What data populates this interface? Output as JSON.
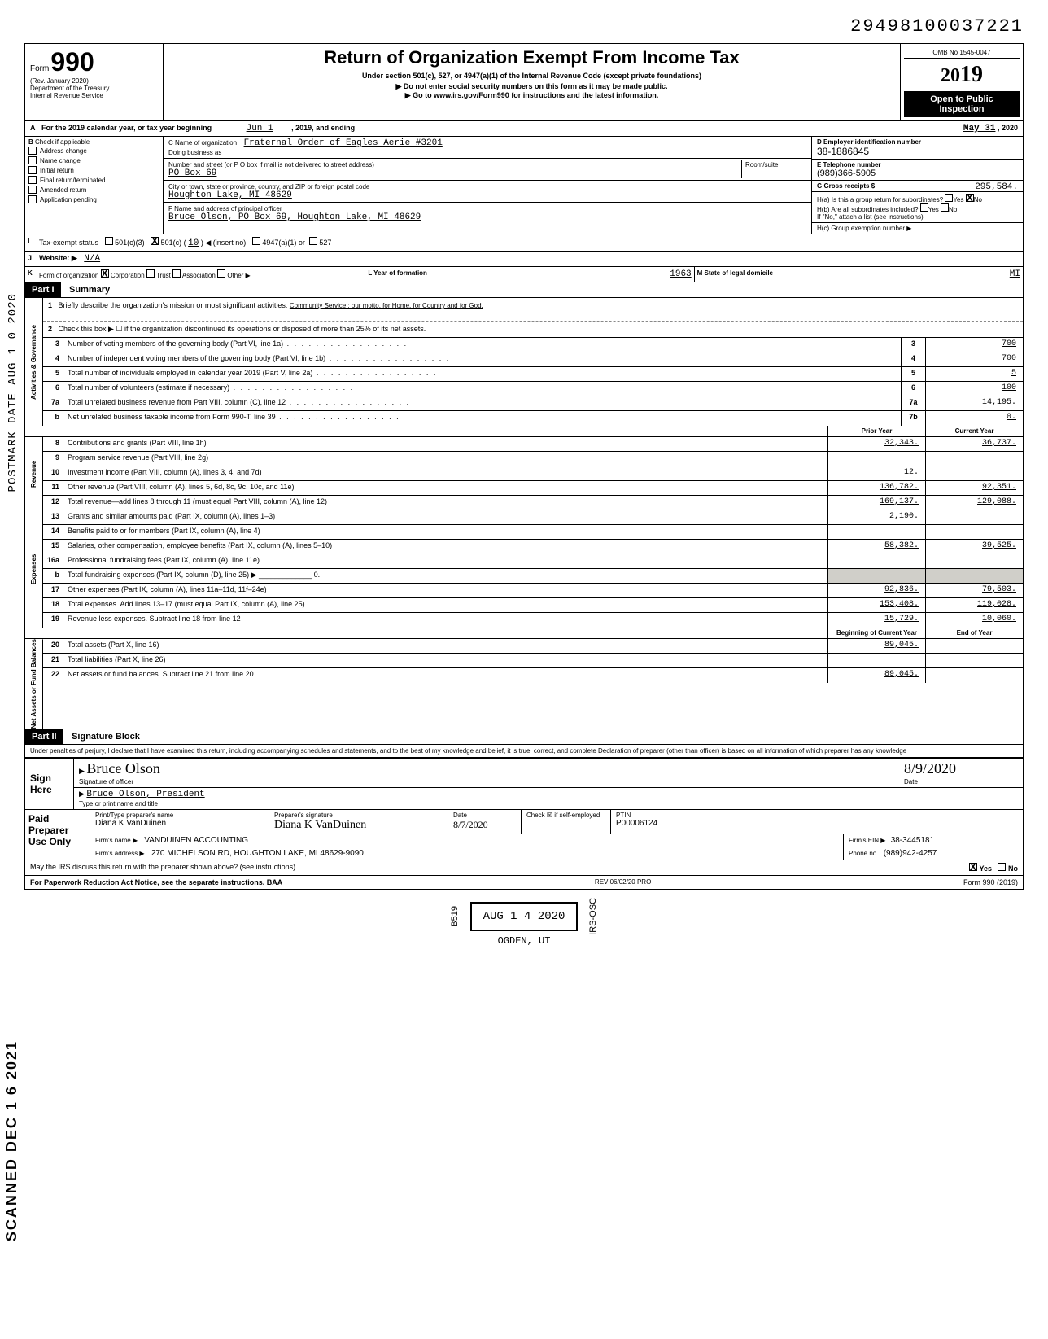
{
  "top_number": "29498100037221",
  "header": {
    "form_prefix": "Form",
    "form_number": "990",
    "rev": "(Rev. January 2020)",
    "dept": "Department of the Treasury",
    "irs": "Internal Revenue Service",
    "title": "Return of Organization Exempt From Income Tax",
    "subtitle": "Under section 501(c), 527, or 4947(a)(1) of the Internal Revenue Code (except private foundations)",
    "warn": "▶ Do not enter social security numbers on this form as it may be made public.",
    "goto": "▶ Go to www.irs.gov/Form990 for instructions and the latest information.",
    "omb": "OMB No 1545-0047",
    "year_prefix": "20",
    "year": "19",
    "open": "Open to Public",
    "inspection": "Inspection"
  },
  "rowA": {
    "label": "A",
    "text": "For the 2019 calendar year, or tax year beginning",
    "begin": "Jun 1",
    "mid": ", 2019, and ending",
    "end": "May 31",
    "endyr": ", 2020"
  },
  "colB": {
    "label": "B",
    "heading": "Check if applicable",
    "items": [
      "Address change",
      "Name change",
      "Initial return",
      "Final return/terminated",
      "Amended return",
      "Application pending"
    ]
  },
  "colC": {
    "name_label": "C Name of organization",
    "name": "Fraternal Order of Eagles Aerie #3201",
    "dba": "Doing business as",
    "street_label": "Number and street (or P O box if mail is not delivered to street address)",
    "street": "PO Box 69",
    "room_label": "Room/suite",
    "city_label": "City or town, state or province, country, and ZIP or foreign postal code",
    "city": "Houghton Lake, MI 48629",
    "officer_label": "F Name and address of principal officer",
    "officer": "Bruce Olson, PO Box 69, Houghton Lake, MI 48629"
  },
  "colD": {
    "label": "D Employer identification number",
    "ein": "38-1886845",
    "e_label": "E Telephone number",
    "phone": "(989)366-5905",
    "g_label": "G Gross receipts $",
    "gross": "295,584.",
    "ha": "H(a) Is this a group return for subordinates?",
    "ha_yes": "Yes",
    "ha_no": "No",
    "hb": "H(b) Are all subordinates included?",
    "hb_yes": "Yes",
    "hb_no": "No",
    "hb_note": "If \"No,\" attach a list (see instructions)",
    "hc": "H(c) Group exemption number ▶"
  },
  "rowI": {
    "label": "I",
    "text": "Tax-exempt status",
    "opt1": "501(c)(3)",
    "opt2": "501(c) (",
    "opt2_val": "10",
    "opt2_suffix": ") ◀ (insert no)",
    "opt3": "4947(a)(1) or",
    "opt4": "527"
  },
  "rowJ": {
    "label": "J",
    "text": "Website: ▶",
    "val": "N/A"
  },
  "rowK": {
    "label": "K",
    "text": "Form of organization",
    "opts": [
      "Corporation",
      "Trust",
      "Association",
      "Other ▶"
    ],
    "l_label": "L Year of formation",
    "l_val": "1963",
    "m_label": "M State of legal domicile",
    "m_val": "MI"
  },
  "partI": {
    "header": "Part I",
    "title": "Summary",
    "line1_num": "1",
    "line1": "Briefly describe the organization's mission or most significant activities:",
    "line1_val": "Community Service : our motto, for Home, for Country and for God.",
    "line2_num": "2",
    "line2": "Check this box ▶ ☐ if the organization discontinued its operations or disposed of more than 25% of its net assets.",
    "sideA": "Activities & Governance",
    "sideB": "Revenue",
    "sideC": "Expenses",
    "sideD": "Net Assets or Fund Balances",
    "rows_single": [
      {
        "num": "3",
        "desc": "Number of voting members of the governing body (Part VI, line 1a)",
        "box": "3",
        "val": "700"
      },
      {
        "num": "4",
        "desc": "Number of independent voting members of the governing body (Part VI, line 1b)",
        "box": "4",
        "val": "700"
      },
      {
        "num": "5",
        "desc": "Total number of individuals employed in calendar year 2019 (Part V, line 2a)",
        "box": "5",
        "val": "5"
      },
      {
        "num": "6",
        "desc": "Total number of volunteers (estimate if necessary)",
        "box": "6",
        "val": "100"
      },
      {
        "num": "7a",
        "desc": "Total unrelated business revenue from Part VIII, column (C), line 12",
        "box": "7a",
        "val": "14,195."
      },
      {
        "num": "b",
        "desc": "Net unrelated business taxable income from Form 990-T, line 39",
        "box": "7b",
        "val": "0."
      }
    ],
    "col_head1": "Prior Year",
    "col_head2": "Current Year",
    "rows_double": [
      {
        "num": "8",
        "desc": "Contributions and grants (Part VIII, line 1h)",
        "v1": "32,343.",
        "v2": "36,737."
      },
      {
        "num": "9",
        "desc": "Program service revenue (Part VIII, line 2g)",
        "v1": "",
        "v2": ""
      },
      {
        "num": "10",
        "desc": "Investment income (Part VIII, column (A), lines 3, 4, and 7d)",
        "v1": "12.",
        "v2": ""
      },
      {
        "num": "11",
        "desc": "Other revenue (Part VIII, column (A), lines 5, 6d, 8c, 9c, 10c, and 11e)",
        "v1": "136,782.",
        "v2": "92,351."
      },
      {
        "num": "12",
        "desc": "Total revenue—add lines 8 through 11 (must equal Part VIII, column (A), line 12)",
        "v1": "169,137.",
        "v2": "129,088."
      },
      {
        "num": "13",
        "desc": "Grants and similar amounts paid (Part IX, column (A), lines 1–3)",
        "v1": "2,190.",
        "v2": ""
      },
      {
        "num": "14",
        "desc": "Benefits paid to or for members (Part IX, column (A), line 4)",
        "v1": "",
        "v2": ""
      },
      {
        "num": "15",
        "desc": "Salaries, other compensation, employee benefits (Part IX, column (A), lines 5–10)",
        "v1": "58,382.",
        "v2": "39,525."
      },
      {
        "num": "16a",
        "desc": "Professional fundraising fees (Part IX, column (A), line 11e)",
        "v1": "",
        "v2": ""
      },
      {
        "num": "b",
        "desc": "Total fundraising expenses (Part IX, column (D), line 25) ▶ _____________ 0.",
        "v1": "GREY",
        "v2": "GREY"
      },
      {
        "num": "17",
        "desc": "Other expenses (Part IX, column (A), lines 11a–11d, 11f–24e)",
        "v1": "92,836.",
        "v2": "79,503."
      },
      {
        "num": "18",
        "desc": "Total expenses. Add lines 13–17 (must equal Part IX, column (A), line 25)",
        "v1": "153,408.",
        "v2": "119,028."
      },
      {
        "num": "19",
        "desc": "Revenue less expenses. Subtract line 18 from line 12",
        "v1": "15,729.",
        "v2": "10,060."
      }
    ],
    "col_head3": "Beginning of Current Year",
    "col_head4": "End of Year",
    "rows_net": [
      {
        "num": "20",
        "desc": "Total assets (Part X, line 16)",
        "v1": "89,045.",
        "v2": ""
      },
      {
        "num": "21",
        "desc": "Total liabilities (Part X, line 26)",
        "v1": "",
        "v2": ""
      },
      {
        "num": "22",
        "desc": "Net assets or fund balances. Subtract line 21 from line 20",
        "v1": "89,045.",
        "v2": ""
      }
    ]
  },
  "partII": {
    "header": "Part II",
    "title": "Signature Block",
    "perjury": "Under penalties of perjury, I declare that I have examined this return, including accompanying schedules and statements, and to the best of my knowledge and belief, it is true, correct, and complete Declaration of preparer (other than officer) is based on all information of which preparer has any knowledge",
    "sign": "Sign",
    "here": "Here",
    "sig_label": "Signature of officer",
    "sig_name": "Bruce Olson",
    "date_label": "Date",
    "date_val": "8/9/2020",
    "name_label": "Type or print name and title",
    "name_val": "Bruce Olson, President"
  },
  "paid": {
    "left1": "Paid",
    "left2": "Preparer",
    "left3": "Use Only",
    "r1c1_label": "Print/Type preparer's name",
    "r1c1": "Diana K VanDuinen",
    "r1c2_label": "Preparer's signature",
    "r1c2": "Diana K VanDuinen",
    "r1c3_label": "Date",
    "r1c3": "8/7/2020",
    "r1c4_label": "Check ☒ if self-employed",
    "r1c5_label": "PTIN",
    "r1c5": "P00006124",
    "r2c1_label": "Firm's name ▶",
    "r2c1": "VANDUINEN ACCOUNTING",
    "r2c2_label": "Firm's EIN ▶",
    "r2c2": "38-3445181",
    "r3c1_label": "Firm's address ▶",
    "r3c1": "270 MICHELSON RD, HOUGHTON LAKE, MI 48629-9090",
    "r3c2_label": "Phone no.",
    "r3c2": "(989)942-4257"
  },
  "discuss": {
    "text": "May the IRS discuss this return with the preparer shown above? (see instructions)",
    "yes": "Yes",
    "no": "No"
  },
  "footer": {
    "left": "For Paperwork Reduction Act Notice, see the separate instructions. BAA",
    "mid": "REV 06/02/20 PRO",
    "right": "Form 990 (2019)"
  },
  "stamps": {
    "postmark": "POSTMARK DATE AUG 1 0 2020",
    "scanned": "SCANNED DEC 1 6 2021",
    "b519": "B519",
    "received": "AUG 1 4 2020",
    "irs_osc": "IRS-OSC",
    "ogden": "OGDEN, UT"
  }
}
